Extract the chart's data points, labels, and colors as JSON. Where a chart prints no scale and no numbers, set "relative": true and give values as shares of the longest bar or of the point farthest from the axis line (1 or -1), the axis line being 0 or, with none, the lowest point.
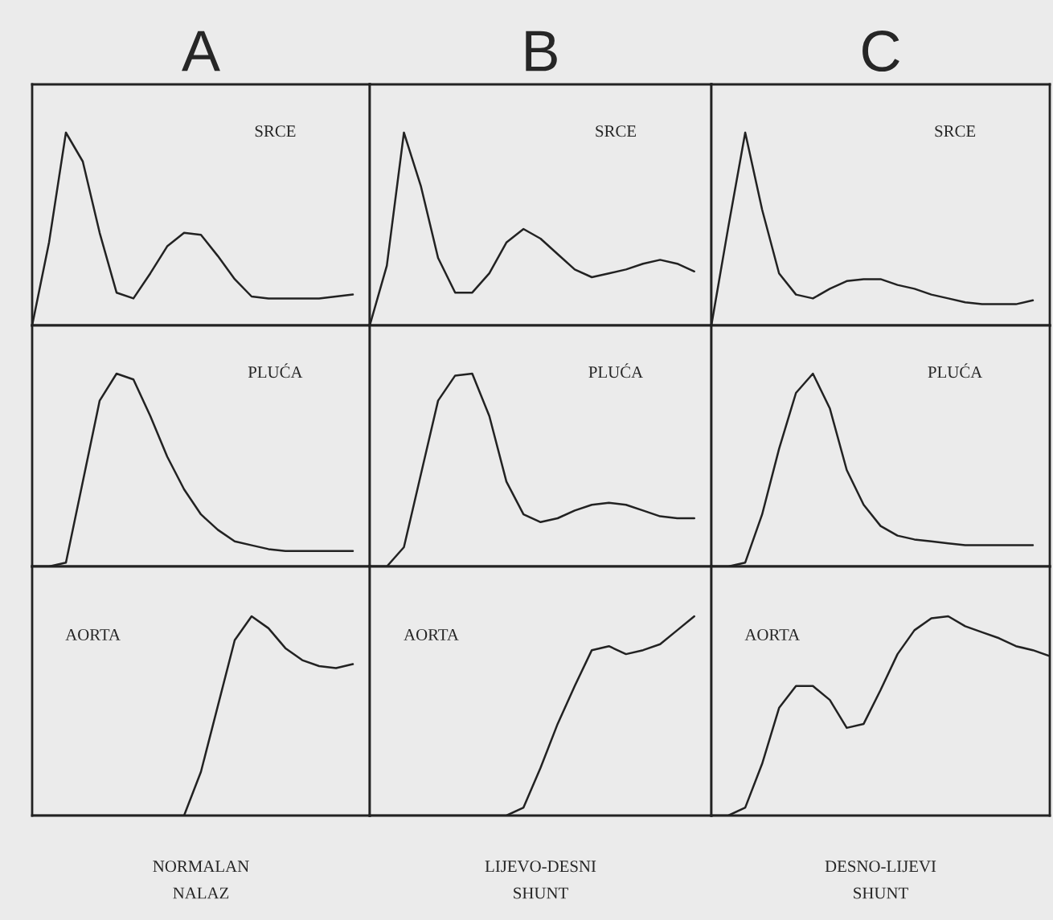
{
  "chart_data": [
    {
      "type": "line",
      "relative": true,
      "tick_labels": false,
      "title": "A",
      "annotations": [
        "SRCE"
      ],
      "categories": [
        null,
        null,
        null,
        null,
        null,
        null,
        null,
        null,
        null,
        null,
        null,
        null,
        null,
        null,
        null,
        null,
        null,
        null,
        null,
        null,
        null
      ],
      "series": [
        {
          "color": "#222222",
          "values": [
            0,
            0.43,
            1.0,
            0.85,
            0.48,
            0.17,
            0.14,
            0.27,
            0.41,
            0.48,
            0.47,
            0.36,
            0.24,
            0.15,
            0.14,
            0.14,
            0.14,
            0.14,
            0.15,
            0.16,
            null
          ]
        }
      ]
    },
    {
      "type": "line",
      "relative": true,
      "tick_labels": false,
      "title": "B",
      "annotations": [
        "SRCE"
      ],
      "categories": [
        null,
        null,
        null,
        null,
        null,
        null,
        null,
        null,
        null,
        null,
        null,
        null,
        null,
        null,
        null,
        null,
        null,
        null,
        null,
        null,
        null
      ],
      "series": [
        {
          "color": "#222222",
          "values": [
            0,
            0.31,
            1.0,
            0.72,
            0.35,
            0.17,
            0.17,
            0.27,
            0.43,
            0.5,
            0.45,
            0.37,
            0.29,
            0.25,
            0.27,
            0.29,
            0.32,
            0.34,
            0.32,
            0.28,
            null
          ]
        }
      ]
    },
    {
      "type": "line",
      "relative": true,
      "tick_labels": false,
      "title": "C",
      "annotations": [
        "SRCE"
      ],
      "categories": [
        null,
        null,
        null,
        null,
        null,
        null,
        null,
        null,
        null,
        null,
        null,
        null,
        null,
        null,
        null,
        null,
        null,
        null,
        null,
        null,
        null
      ],
      "series": [
        {
          "color": "#222222",
          "values": [
            0,
            0.51,
            1.0,
            0.6,
            0.27,
            0.16,
            0.14,
            0.19,
            0.23,
            0.24,
            0.24,
            0.21,
            0.19,
            0.16,
            0.14,
            0.12,
            0.11,
            0.11,
            0.11,
            0.13,
            null
          ]
        }
      ]
    },
    {
      "type": "line",
      "relative": true,
      "tick_labels": false,
      "annotations": [
        "PLUĆA"
      ],
      "categories": [
        null,
        null,
        null,
        null,
        null,
        null,
        null,
        null,
        null,
        null,
        null,
        null,
        null,
        null,
        null,
        null,
        null,
        null,
        null,
        null,
        null
      ],
      "series": [
        {
          "color": "#222222",
          "values": [
            0,
            0,
            0.02,
            0.44,
            0.86,
            1.0,
            0.97,
            0.78,
            0.57,
            0.4,
            0.27,
            0.19,
            0.13,
            0.11,
            0.09,
            0.08,
            0.08,
            0.08,
            0.08,
            0.08,
            null
          ]
        }
      ]
    },
    {
      "type": "line",
      "relative": true,
      "tick_labels": false,
      "annotations": [
        "PLUĆA"
      ],
      "categories": [
        null,
        null,
        null,
        null,
        null,
        null,
        null,
        null,
        null,
        null,
        null,
        null,
        null,
        null,
        null,
        null,
        null,
        null,
        null,
        null,
        null
      ],
      "series": [
        {
          "color": "#222222",
          "values": [
            0,
            0,
            0.1,
            0.48,
            0.86,
            0.99,
            1.0,
            0.78,
            0.44,
            0.27,
            0.23,
            0.25,
            0.29,
            0.32,
            0.33,
            0.32,
            0.29,
            0.26,
            0.25,
            0.25,
            null
          ]
        }
      ]
    },
    {
      "type": "line",
      "relative": true,
      "tick_labels": false,
      "annotations": [
        "PLUĆA"
      ],
      "categories": [
        null,
        null,
        null,
        null,
        null,
        null,
        null,
        null,
        null,
        null,
        null,
        null,
        null,
        null,
        null,
        null,
        null,
        null,
        null,
        null,
        null
      ],
      "series": [
        {
          "color": "#222222",
          "values": [
            0,
            0,
            0.02,
            0.27,
            0.61,
            0.9,
            1.0,
            0.82,
            0.5,
            0.32,
            0.21,
            0.16,
            0.14,
            0.13,
            0.12,
            0.11,
            0.11,
            0.11,
            0.11,
            0.11,
            null
          ]
        }
      ]
    },
    {
      "type": "line",
      "relative": true,
      "tick_labels": false,
      "xlabel": "NORMALAN\nNALAZ",
      "annotations": [
        "AORTA"
      ],
      "categories": [
        null,
        null,
        null,
        null,
        null,
        null,
        null,
        null,
        null,
        null,
        null,
        null,
        null,
        null,
        null,
        null,
        null,
        null,
        null,
        null,
        null
      ],
      "series": [
        {
          "color": "#222222",
          "values": [
            0,
            0,
            0,
            0,
            0,
            0,
            0,
            0,
            0,
            0,
            0.22,
            0.55,
            0.88,
            1.0,
            0.94,
            0.84,
            0.78,
            0.75,
            0.74,
            0.76,
            null
          ]
        }
      ]
    },
    {
      "type": "line",
      "relative": true,
      "tick_labels": false,
      "xlabel": "LIJEVO-DESNI\nSHUNT",
      "annotations": [
        "AORTA"
      ],
      "categories": [
        null,
        null,
        null,
        null,
        null,
        null,
        null,
        null,
        null,
        null,
        null,
        null,
        null,
        null,
        null,
        null,
        null,
        null,
        null,
        null,
        null
      ],
      "series": [
        {
          "color": "#222222",
          "values": [
            0,
            0,
            0,
            0,
            0,
            0,
            0,
            0,
            0,
            0.04,
            0.24,
            0.46,
            0.65,
            0.83,
            0.85,
            0.81,
            0.83,
            0.86,
            0.93,
            1.0,
            null
          ]
        }
      ]
    },
    {
      "type": "line",
      "relative": true,
      "tick_labels": false,
      "xlabel": "DESNO-LIJEVI\nSHUNT",
      "annotations": [
        "AORTA"
      ],
      "categories": [
        null,
        null,
        null,
        null,
        null,
        null,
        null,
        null,
        null,
        null,
        null,
        null,
        null,
        null,
        null,
        null,
        null,
        null,
        null,
        null,
        null
      ],
      "series": [
        {
          "color": "#222222",
          "values": [
            0,
            0,
            0.04,
            0.26,
            0.54,
            0.65,
            0.65,
            0.58,
            0.44,
            0.46,
            0.63,
            0.81,
            0.93,
            0.99,
            1.0,
            0.95,
            0.92,
            0.89,
            0.85,
            0.83,
            0.8
          ]
        }
      ]
    }
  ]
}
